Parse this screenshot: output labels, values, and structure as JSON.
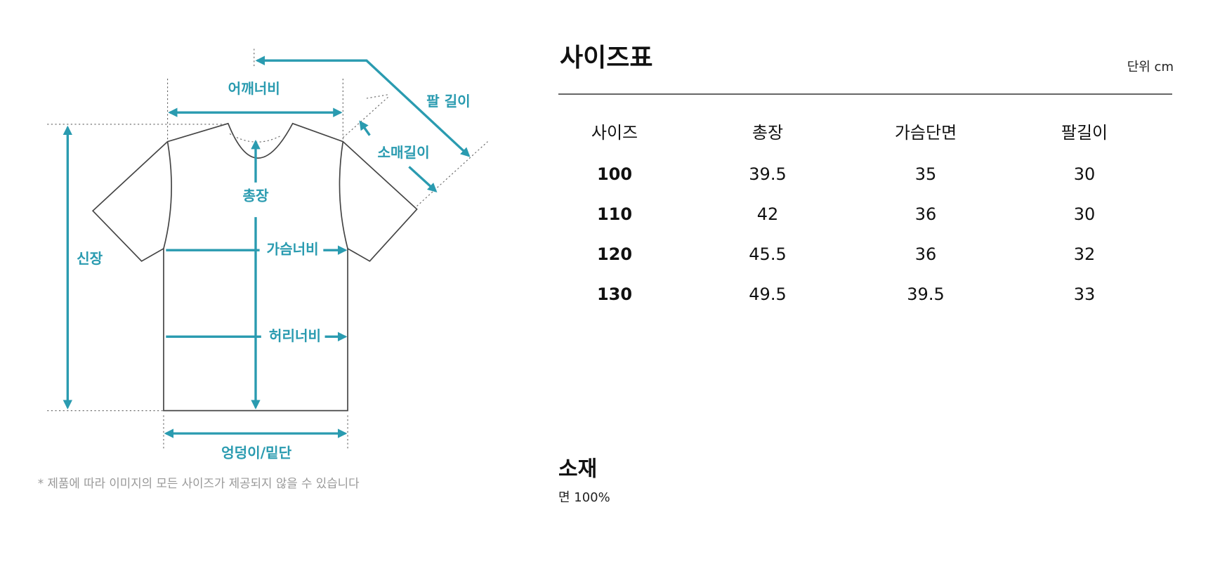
{
  "diagram": {
    "labels": {
      "shoulder": "어깨너비",
      "arm": "팔 길이",
      "sleeve": "소매길이",
      "length": "총장",
      "height": "신장",
      "chest": "가슴너비",
      "waist": "허리너비",
      "hem": "엉덩이/밑단"
    },
    "note": "* 제품에 따라 이미지의 모든 사이즈가 제공되지 않을 수 있습니다"
  },
  "size_table": {
    "title": "사이즈표",
    "unit": "단위 cm",
    "headers": [
      "사이즈",
      "총장",
      "가슴단면",
      "팔길이"
    ],
    "rows": [
      [
        "100",
        "39.5",
        "35",
        "30"
      ],
      [
        "110",
        "42",
        "36",
        "30"
      ],
      [
        "120",
        "45.5",
        "36",
        "32"
      ],
      [
        "130",
        "49.5",
        "39.5",
        "33"
      ]
    ]
  },
  "material": {
    "title": "소재",
    "text": "면 100%"
  }
}
